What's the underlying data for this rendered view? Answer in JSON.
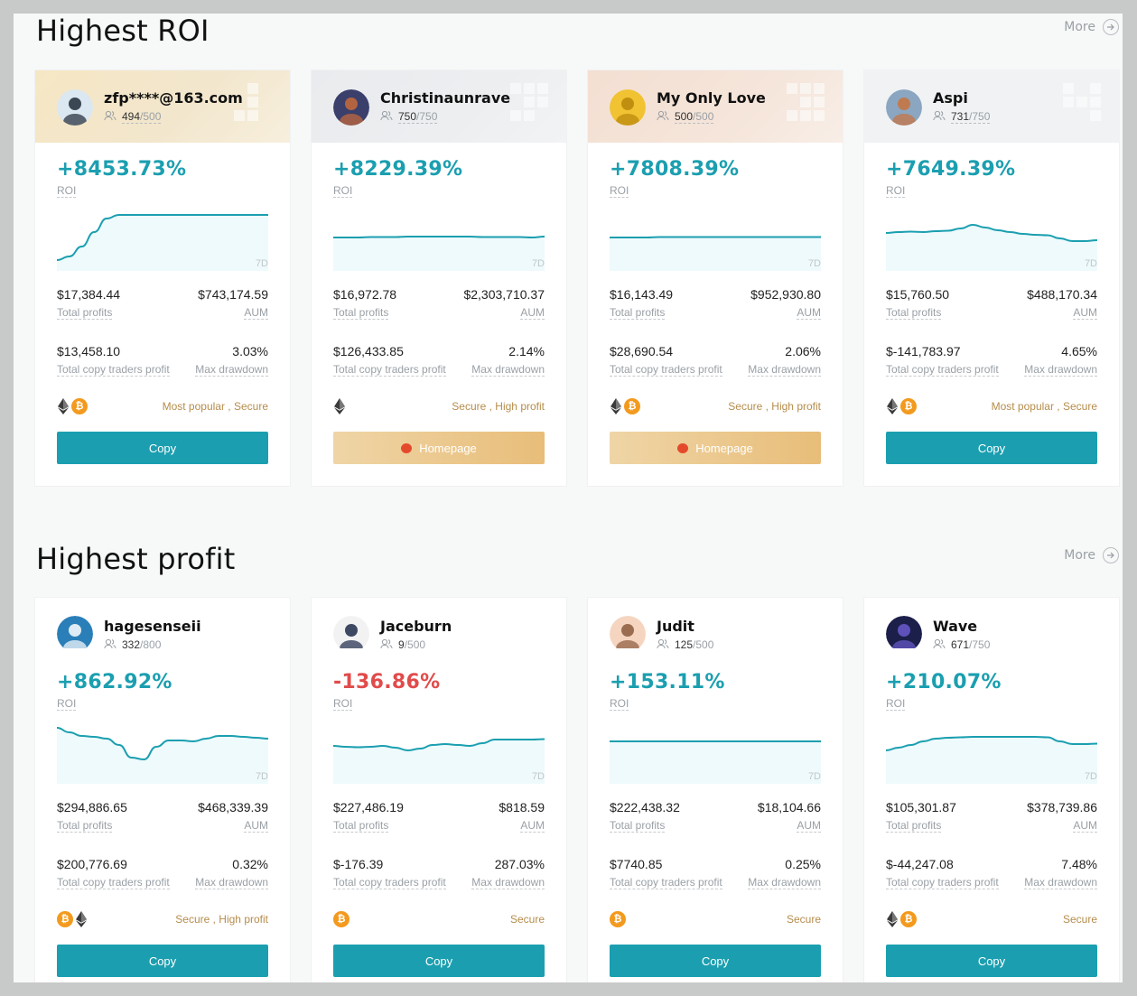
{
  "sections": [
    {
      "title": "Highest ROI",
      "more": "More",
      "cards": [
        {
          "name": "zfp****@163.com",
          "followers": "494",
          "followers_cap": "/500",
          "roi": "+8453.73%",
          "roi_label": "ROI",
          "period": "7D",
          "total_profits": "$17,384.44",
          "total_profits_label": "Total profits",
          "aum": "$743,174.59",
          "aum_label": "AUM",
          "copy_profit": "$13,458.10",
          "copy_profit_label": "Total copy traders profit",
          "max_drawdown": "3.03%",
          "max_drawdown_label": "Max drawdown",
          "coins": [
            "eth",
            "btc"
          ],
          "tags": "Most popular , Secure",
          "button": "Copy",
          "button_type": "copy",
          "head_style": "gold",
          "rank": 1,
          "spark": [
            0,
            8,
            30,
            62,
            92,
            100,
            100,
            100,
            100,
            100,
            100,
            100,
            100,
            100,
            100,
            100,
            100,
            100
          ]
        },
        {
          "name": "Christinaunrave",
          "followers": "750",
          "followers_cap": "/750",
          "roi": "+8229.39%",
          "roi_label": "ROI",
          "period": "7D",
          "total_profits": "$16,972.78",
          "total_profits_label": "Total profits",
          "aum": "$2,303,710.37",
          "aum_label": "AUM",
          "copy_profit": "$126,433.85",
          "copy_profit_label": "Total copy traders profit",
          "max_drawdown": "2.14%",
          "max_drawdown_label": "Max drawdown",
          "coins": [
            "eth"
          ],
          "tags": "Secure , High profit",
          "button": "Homepage",
          "button_type": "home",
          "head_style": "silver",
          "rank": 2,
          "spark": [
            50,
            50,
            50,
            51,
            51,
            51,
            52,
            52,
            52,
            52,
            52,
            52,
            51,
            51,
            51,
            51,
            50,
            52
          ]
        },
        {
          "name": "My Only Love",
          "followers": "500",
          "followers_cap": "/500",
          "roi": "+7808.39%",
          "roi_label": "ROI",
          "period": "7D",
          "total_profits": "$16,143.49",
          "total_profits_label": "Total profits",
          "aum": "$952,930.80",
          "aum_label": "AUM",
          "copy_profit": "$28,690.54",
          "copy_profit_label": "Total copy traders profit",
          "max_drawdown": "2.06%",
          "max_drawdown_label": "Max drawdown",
          "coins": [
            "eth",
            "btc"
          ],
          "tags": "Secure , High profit",
          "button": "Homepage",
          "button_type": "home",
          "head_style": "bronze",
          "rank": 3,
          "spark": [
            50,
            50,
            50,
            50,
            51,
            51,
            51,
            51,
            51,
            51,
            51,
            51,
            51,
            51,
            51,
            51,
            51,
            51
          ]
        },
        {
          "name": "Aspi",
          "followers": "731",
          "followers_cap": "/750",
          "roi": "+7649.39%",
          "roi_label": "ROI",
          "period": "7D",
          "total_profits": "$15,760.50",
          "total_profits_label": "Total profits",
          "aum": "$488,170.34",
          "aum_label": "AUM",
          "copy_profit": "$-141,783.97",
          "copy_profit_label": "Total copy traders profit",
          "max_drawdown": "4.65%",
          "max_drawdown_label": "Max drawdown",
          "coins": [
            "eth",
            "btc"
          ],
          "tags": "Most popular , Secure",
          "button": "Copy",
          "button_type": "copy",
          "head_style": "plain",
          "rank": 4,
          "spark": [
            60,
            62,
            63,
            62,
            64,
            65,
            70,
            78,
            72,
            66,
            62,
            58,
            56,
            55,
            48,
            42,
            42,
            44
          ]
        }
      ]
    },
    {
      "title": "Highest profit",
      "more": "More",
      "cards": [
        {
          "name": "hagesenseii",
          "followers": "332",
          "followers_cap": "/800",
          "roi": "+862.92%",
          "roi_label": "ROI",
          "period": "7D",
          "total_profits": "$294,886.65",
          "total_profits_label": "Total profits",
          "aum": "$468,339.39",
          "aum_label": "AUM",
          "copy_profit": "$200,776.69",
          "copy_profit_label": "Total copy traders profit",
          "max_drawdown": "0.32%",
          "max_drawdown_label": "Max drawdown",
          "coins": [
            "btc",
            "eth"
          ],
          "tags": "Secure , High profit",
          "button": "Copy",
          "button_type": "copy",
          "head_style": "white",
          "rank": 0,
          "spark": [
            100,
            90,
            82,
            80,
            76,
            62,
            34,
            30,
            58,
            72,
            72,
            70,
            76,
            82,
            82,
            80,
            78,
            76
          ]
        },
        {
          "name": "Jaceburn",
          "followers": "9",
          "followers_cap": "/500",
          "roi": "-136.86%",
          "roi_label": "ROI",
          "period": "7D",
          "total_profits": "$227,486.19",
          "total_profits_label": "Total profits",
          "aum": "$818.59",
          "aum_label": "AUM",
          "copy_profit": "$-176.39",
          "copy_profit_label": "Total copy traders profit",
          "max_drawdown": "287.03%",
          "max_drawdown_label": "Max drawdown",
          "coins": [
            "btc"
          ],
          "tags": "Secure",
          "button": "Copy",
          "button_type": "copy",
          "head_style": "white",
          "rank": 0,
          "spark": [
            60,
            58,
            57,
            58,
            60,
            56,
            50,
            54,
            62,
            64,
            62,
            60,
            66,
            74,
            74,
            74,
            74,
            75
          ]
        },
        {
          "name": "Judit",
          "followers": "125",
          "followers_cap": "/500",
          "roi": "+153.11%",
          "roi_label": "ROI",
          "period": "7D",
          "total_profits": "$222,438.32",
          "total_profits_label": "Total profits",
          "aum": "$18,104.66",
          "aum_label": "AUM",
          "copy_profit": "$7740.85",
          "copy_profit_label": "Total copy traders profit",
          "max_drawdown": "0.25%",
          "max_drawdown_label": "Max drawdown",
          "coins": [
            "btc"
          ],
          "tags": "Secure",
          "button": "Copy",
          "button_type": "copy",
          "head_style": "white",
          "rank": 0,
          "spark": [
            70,
            70,
            70,
            70,
            70,
            70,
            70,
            70,
            70,
            70,
            70,
            70,
            70,
            70,
            70,
            70,
            70,
            70
          ]
        },
        {
          "name": "Wave",
          "followers": "671",
          "followers_cap": "/750",
          "roi": "+210.07%",
          "roi_label": "ROI",
          "period": "7D",
          "total_profits": "$105,301.87",
          "total_profits_label": "Total profits",
          "aum": "$378,739.86",
          "aum_label": "AUM",
          "copy_profit": "$-44,247.08",
          "copy_profit_label": "Total copy traders profit",
          "max_drawdown": "7.48%",
          "max_drawdown_label": "Max drawdown",
          "coins": [
            "eth",
            "btc"
          ],
          "tags": "Secure",
          "button": "Copy",
          "button_type": "copy",
          "head_style": "white",
          "rank": 0,
          "spark": [
            50,
            56,
            62,
            70,
            76,
            78,
            79,
            80,
            80,
            80,
            80,
            80,
            80,
            79,
            70,
            64,
            64,
            65
          ]
        }
      ]
    }
  ],
  "colors": {
    "accent": "#1b9fb0",
    "negative": "#e14b4b",
    "tag": "#b68d4c",
    "btc": "#f39a1e"
  }
}
